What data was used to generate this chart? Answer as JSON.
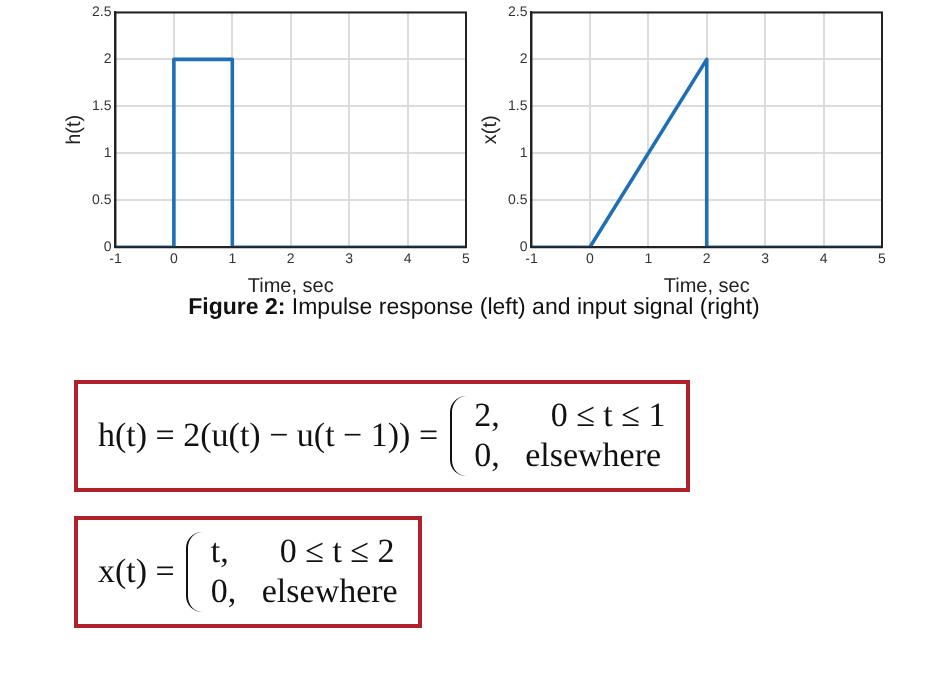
{
  "chart_data": [
    {
      "type": "line",
      "xlabel": "Time, sec",
      "ylabel": "h(t)",
      "xlim": [
        -1,
        5
      ],
      "xticks": [
        -1,
        0,
        1,
        2,
        3,
        4,
        5
      ],
      "ylim": [
        0,
        2.5
      ],
      "yticks": [
        0,
        0.5,
        1,
        1.5,
        2,
        2.5
      ],
      "grid": true,
      "marker": "none",
      "line_style": "solid",
      "series": [
        {
          "color": "#1f6fb4",
          "x": [
            -1,
            0,
            0,
            1,
            1,
            5
          ],
          "values": [
            0,
            0,
            2,
            2,
            0,
            0
          ]
        }
      ]
    },
    {
      "type": "line",
      "xlabel": "Time, sec",
      "ylabel": "x(t)",
      "xlim": [
        -1,
        5
      ],
      "xticks": [
        -1,
        0,
        1,
        2,
        3,
        4,
        5
      ],
      "ylim": [
        0,
        2.5
      ],
      "yticks": [
        0,
        0.5,
        1,
        1.5,
        2,
        2.5
      ],
      "grid": true,
      "marker": "none",
      "line_style": "solid",
      "series": [
        {
          "color": "#1f6fb4",
          "x": [
            -1,
            0,
            2,
            2,
            5
          ],
          "values": [
            0,
            0,
            2,
            0,
            0
          ]
        }
      ]
    },
    {
      "type": "other",
      "title": "Figure 2: Impulse response (left) and input signal (right)",
      "annotations": [
        "h(t) = 2(u(t) − u(t − 1)) =",
        "2,      0 ≤ t ≤ 1",
        "0,   elsewhere",
        "x(t) =",
        "t,      0 ≤ t ≤ 2",
        "0,   elsewhere"
      ]
    }
  ]
}
